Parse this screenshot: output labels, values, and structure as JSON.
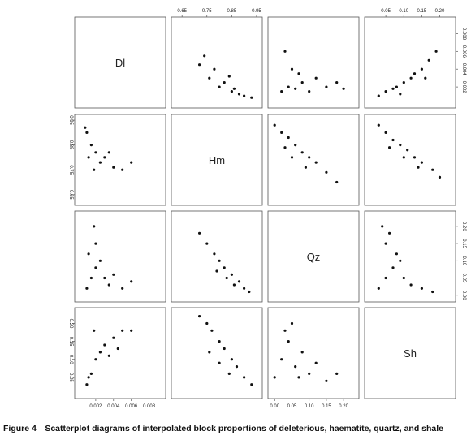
{
  "caption": "Figure 4—Scatterplot diagrams of interpolated block proportions of deleterious, haematite, quartz, and shale",
  "chart_data": {
    "type": "scatter",
    "layout": "scatterplot-matrix",
    "variables": [
      "Dl",
      "Hm",
      "Qz",
      "Sh"
    ],
    "ranges": {
      "Dl": [
        0.0,
        0.0095
      ],
      "Hm": [
        0.62,
        0.96
      ],
      "Qz": [
        -0.01,
        0.235
      ],
      "Sh": [
        0.0,
        0.235
      ]
    },
    "ticks": {
      "Dl": [
        "0.002",
        "0.004",
        "0.006",
        "0.008"
      ],
      "Hm": [
        "0.65",
        "0.75",
        "0.85",
        "0.95"
      ],
      "Qz": [
        "0.00",
        "0.05",
        "0.10",
        "0.15",
        "0.20"
      ],
      "Sh": [
        "0.05",
        "0.10",
        "0.15",
        "0.20"
      ]
    },
    "tick_values": {
      "Dl": [
        0.002,
        0.004,
        0.006,
        0.008
      ],
      "Hm": [
        0.65,
        0.75,
        0.85,
        0.95
      ],
      "Qz": [
        0.0,
        0.05,
        0.1,
        0.15,
        0.2
      ],
      "Sh": [
        0.05,
        0.1,
        0.15,
        0.2
      ]
    },
    "pairs": [
      {
        "x": "Hm",
        "y": "Dl",
        "points": [
          [
            0.85,
            0.0015
          ],
          [
            0.88,
            0.0012
          ],
          [
            0.8,
            0.002
          ],
          [
            0.76,
            0.003
          ],
          [
            0.72,
            0.0045
          ],
          [
            0.9,
            0.001
          ],
          [
            0.93,
            0.0008
          ],
          [
            0.82,
            0.0025
          ],
          [
            0.78,
            0.004
          ],
          [
            0.86,
            0.0018
          ],
          [
            0.74,
            0.0055
          ],
          [
            0.84,
            0.0032
          ]
        ]
      },
      {
        "x": "Qz",
        "y": "Dl",
        "points": [
          [
            0.02,
            0.0015
          ],
          [
            0.04,
            0.002
          ],
          [
            0.06,
            0.0018
          ],
          [
            0.08,
            0.0025
          ],
          [
            0.1,
            0.0015
          ],
          [
            0.12,
            0.003
          ],
          [
            0.15,
            0.002
          ],
          [
            0.18,
            0.0025
          ],
          [
            0.05,
            0.004
          ],
          [
            0.03,
            0.006
          ],
          [
            0.07,
            0.0035
          ],
          [
            0.2,
            0.0018
          ]
        ]
      },
      {
        "x": "Sh",
        "y": "Dl",
        "points": [
          [
            0.03,
            0.001
          ],
          [
            0.05,
            0.0015
          ],
          [
            0.08,
            0.002
          ],
          [
            0.1,
            0.0025
          ],
          [
            0.12,
            0.003
          ],
          [
            0.15,
            0.004
          ],
          [
            0.17,
            0.005
          ],
          [
            0.19,
            0.006
          ],
          [
            0.07,
            0.0018
          ],
          [
            0.13,
            0.0035
          ],
          [
            0.16,
            0.003
          ],
          [
            0.09,
            0.0012
          ]
        ]
      },
      {
        "x": "Dl",
        "y": "Hm",
        "points": [
          [
            0.001,
            0.9
          ],
          [
            0.0015,
            0.85
          ],
          [
            0.002,
            0.82
          ],
          [
            0.0025,
            0.78
          ],
          [
            0.003,
            0.8
          ],
          [
            0.004,
            0.76
          ],
          [
            0.005,
            0.75
          ],
          [
            0.006,
            0.78
          ],
          [
            0.0012,
            0.8
          ],
          [
            0.0018,
            0.75
          ],
          [
            0.0035,
            0.82
          ],
          [
            0.0008,
            0.92
          ]
        ]
      },
      {
        "x": "Qz",
        "y": "Hm",
        "points": [
          [
            0.0,
            0.93
          ],
          [
            0.02,
            0.9
          ],
          [
            0.04,
            0.88
          ],
          [
            0.06,
            0.85
          ],
          [
            0.08,
            0.82
          ],
          [
            0.1,
            0.8
          ],
          [
            0.12,
            0.78
          ],
          [
            0.15,
            0.74
          ],
          [
            0.05,
            0.8
          ],
          [
            0.03,
            0.84
          ],
          [
            0.09,
            0.76
          ],
          [
            0.18,
            0.7
          ]
        ]
      },
      {
        "x": "Sh",
        "y": "Hm",
        "points": [
          [
            0.03,
            0.93
          ],
          [
            0.05,
            0.9
          ],
          [
            0.07,
            0.87
          ],
          [
            0.09,
            0.85
          ],
          [
            0.11,
            0.83
          ],
          [
            0.13,
            0.8
          ],
          [
            0.15,
            0.78
          ],
          [
            0.18,
            0.75
          ],
          [
            0.2,
            0.72
          ],
          [
            0.06,
            0.84
          ],
          [
            0.1,
            0.8
          ],
          [
            0.14,
            0.76
          ]
        ]
      },
      {
        "x": "Dl",
        "y": "Qz",
        "points": [
          [
            0.001,
            0.02
          ],
          [
            0.0015,
            0.05
          ],
          [
            0.002,
            0.08
          ],
          [
            0.002,
            0.15
          ],
          [
            0.0025,
            0.1
          ],
          [
            0.003,
            0.05
          ],
          [
            0.0035,
            0.03
          ],
          [
            0.004,
            0.06
          ],
          [
            0.0012,
            0.12
          ],
          [
            0.0018,
            0.2
          ],
          [
            0.005,
            0.02
          ],
          [
            0.006,
            0.04
          ]
        ]
      },
      {
        "x": "Hm",
        "y": "Qz",
        "points": [
          [
            0.92,
            0.01
          ],
          [
            0.9,
            0.02
          ],
          [
            0.88,
            0.04
          ],
          [
            0.85,
            0.06
          ],
          [
            0.82,
            0.08
          ],
          [
            0.8,
            0.1
          ],
          [
            0.78,
            0.12
          ],
          [
            0.75,
            0.15
          ],
          [
            0.72,
            0.18
          ],
          [
            0.86,
            0.03
          ],
          [
            0.83,
            0.05
          ],
          [
            0.79,
            0.07
          ]
        ]
      },
      {
        "x": "Sh",
        "y": "Qz",
        "points": [
          [
            0.03,
            0.02
          ],
          [
            0.05,
            0.05
          ],
          [
            0.07,
            0.08
          ],
          [
            0.09,
            0.1
          ],
          [
            0.05,
            0.15
          ],
          [
            0.04,
            0.2
          ],
          [
            0.1,
            0.05
          ],
          [
            0.12,
            0.03
          ],
          [
            0.15,
            0.02
          ],
          [
            0.08,
            0.12
          ],
          [
            0.06,
            0.18
          ],
          [
            0.18,
            0.01
          ]
        ]
      },
      {
        "x": "Dl",
        "y": "Sh",
        "points": [
          [
            0.001,
            0.03
          ],
          [
            0.0015,
            0.06
          ],
          [
            0.002,
            0.1
          ],
          [
            0.0025,
            0.12
          ],
          [
            0.003,
            0.14
          ],
          [
            0.004,
            0.16
          ],
          [
            0.005,
            0.18
          ],
          [
            0.006,
            0.18
          ],
          [
            0.0018,
            0.18
          ],
          [
            0.0035,
            0.11
          ],
          [
            0.0045,
            0.13
          ],
          [
            0.0012,
            0.05
          ]
        ]
      },
      {
        "x": "Hm",
        "y": "Sh",
        "points": [
          [
            0.93,
            0.03
          ],
          [
            0.9,
            0.05
          ],
          [
            0.87,
            0.08
          ],
          [
            0.85,
            0.1
          ],
          [
            0.82,
            0.13
          ],
          [
            0.8,
            0.15
          ],
          [
            0.77,
            0.18
          ],
          [
            0.75,
            0.2
          ],
          [
            0.72,
            0.22
          ],
          [
            0.84,
            0.06
          ],
          [
            0.8,
            0.09
          ],
          [
            0.76,
            0.12
          ]
        ]
      },
      {
        "x": "Qz",
        "y": "Sh",
        "points": [
          [
            0.0,
            0.05
          ],
          [
            0.02,
            0.1
          ],
          [
            0.04,
            0.15
          ],
          [
            0.05,
            0.2
          ],
          [
            0.06,
            0.08
          ],
          [
            0.08,
            0.12
          ],
          [
            0.1,
            0.06
          ],
          [
            0.12,
            0.09
          ],
          [
            0.15,
            0.04
          ],
          [
            0.18,
            0.06
          ],
          [
            0.03,
            0.18
          ],
          [
            0.07,
            0.05
          ]
        ]
      }
    ]
  }
}
